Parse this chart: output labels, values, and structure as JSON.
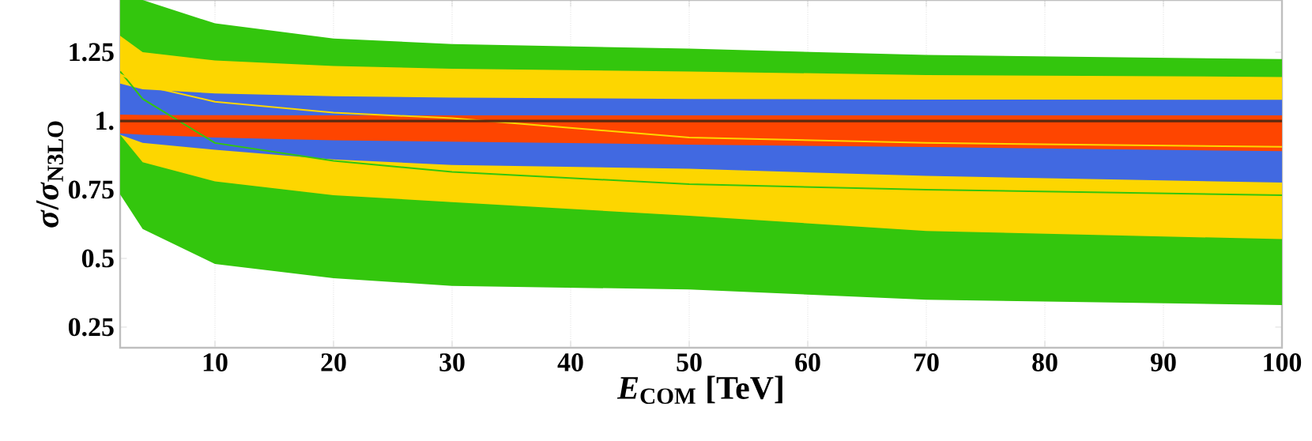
{
  "chart_data": {
    "type": "line",
    "xlabel": "*E*$_{COM}$ [TeV]",
    "ylabel": "*σ*/*σ*$_{N3LO}$",
    "xlim": [
      2,
      100
    ],
    "ylim": [
      0.175,
      1.44
    ],
    "xticks": [
      10,
      20,
      30,
      40,
      50,
      60,
      70,
      80,
      90,
      100
    ],
    "yticks": [
      0.25,
      0.5,
      0.75,
      {
        "value": 1,
        "label": "1."
      },
      1.25
    ],
    "grid": "x",
    "x": [
      2,
      3.9,
      10,
      20,
      30,
      50,
      70,
      100
    ],
    "series": [
      {
        "color": "#33c60d",
        "values": [
          1.18,
          1.08,
          0.92,
          0.855,
          0.815,
          0.77,
          0.75,
          0.73
        ],
        "lower": [
          0.733,
          0.607,
          0.48,
          0.428,
          0.4,
          0.387,
          0.35,
          0.33
        ],
        "upper": [
          1.44,
          1.44,
          1.355,
          1.3,
          1.28,
          1.263,
          1.24,
          1.225
        ]
      },
      {
        "color": "#fdd600",
        "values": [
          1.17,
          1.13,
          1.07,
          1.03,
          1.01,
          0.94,
          0.92,
          0.906
        ],
        "lower": [
          0.95,
          0.85,
          0.78,
          0.73,
          0.705,
          0.655,
          0.6,
          0.57
        ],
        "upper": [
          1.31,
          1.25,
          1.22,
          1.2,
          1.19,
          1.18,
          1.167,
          1.16
        ]
      },
      {
        "color": "#4169e1",
        "values": [
          null,
          null,
          null,
          null,
          null,
          null,
          null,
          null
        ],
        "lower": [
          0.95,
          0.92,
          0.895,
          0.86,
          0.84,
          0.826,
          0.8,
          0.776
        ],
        "upper": [
          1.136,
          1.115,
          1.1,
          1.09,
          1.085,
          1.08,
          1.078,
          1.077
        ]
      },
      {
        "color": "#fe4500",
        "values": [
          null,
          null,
          null,
          null,
          null,
          null,
          null,
          null
        ],
        "lower": [
          0.955,
          0.95,
          0.94,
          0.93,
          0.925,
          0.914,
          0.905,
          0.89
        ],
        "upper": [
          1.023,
          1.022,
          1.021,
          1.02,
          1.02,
          1.02,
          1.02,
          1.02
        ]
      }
    ],
    "ref_lines": [
      {
        "axis": "y",
        "value": 1,
        "color": "#5a2a10"
      }
    ]
  }
}
